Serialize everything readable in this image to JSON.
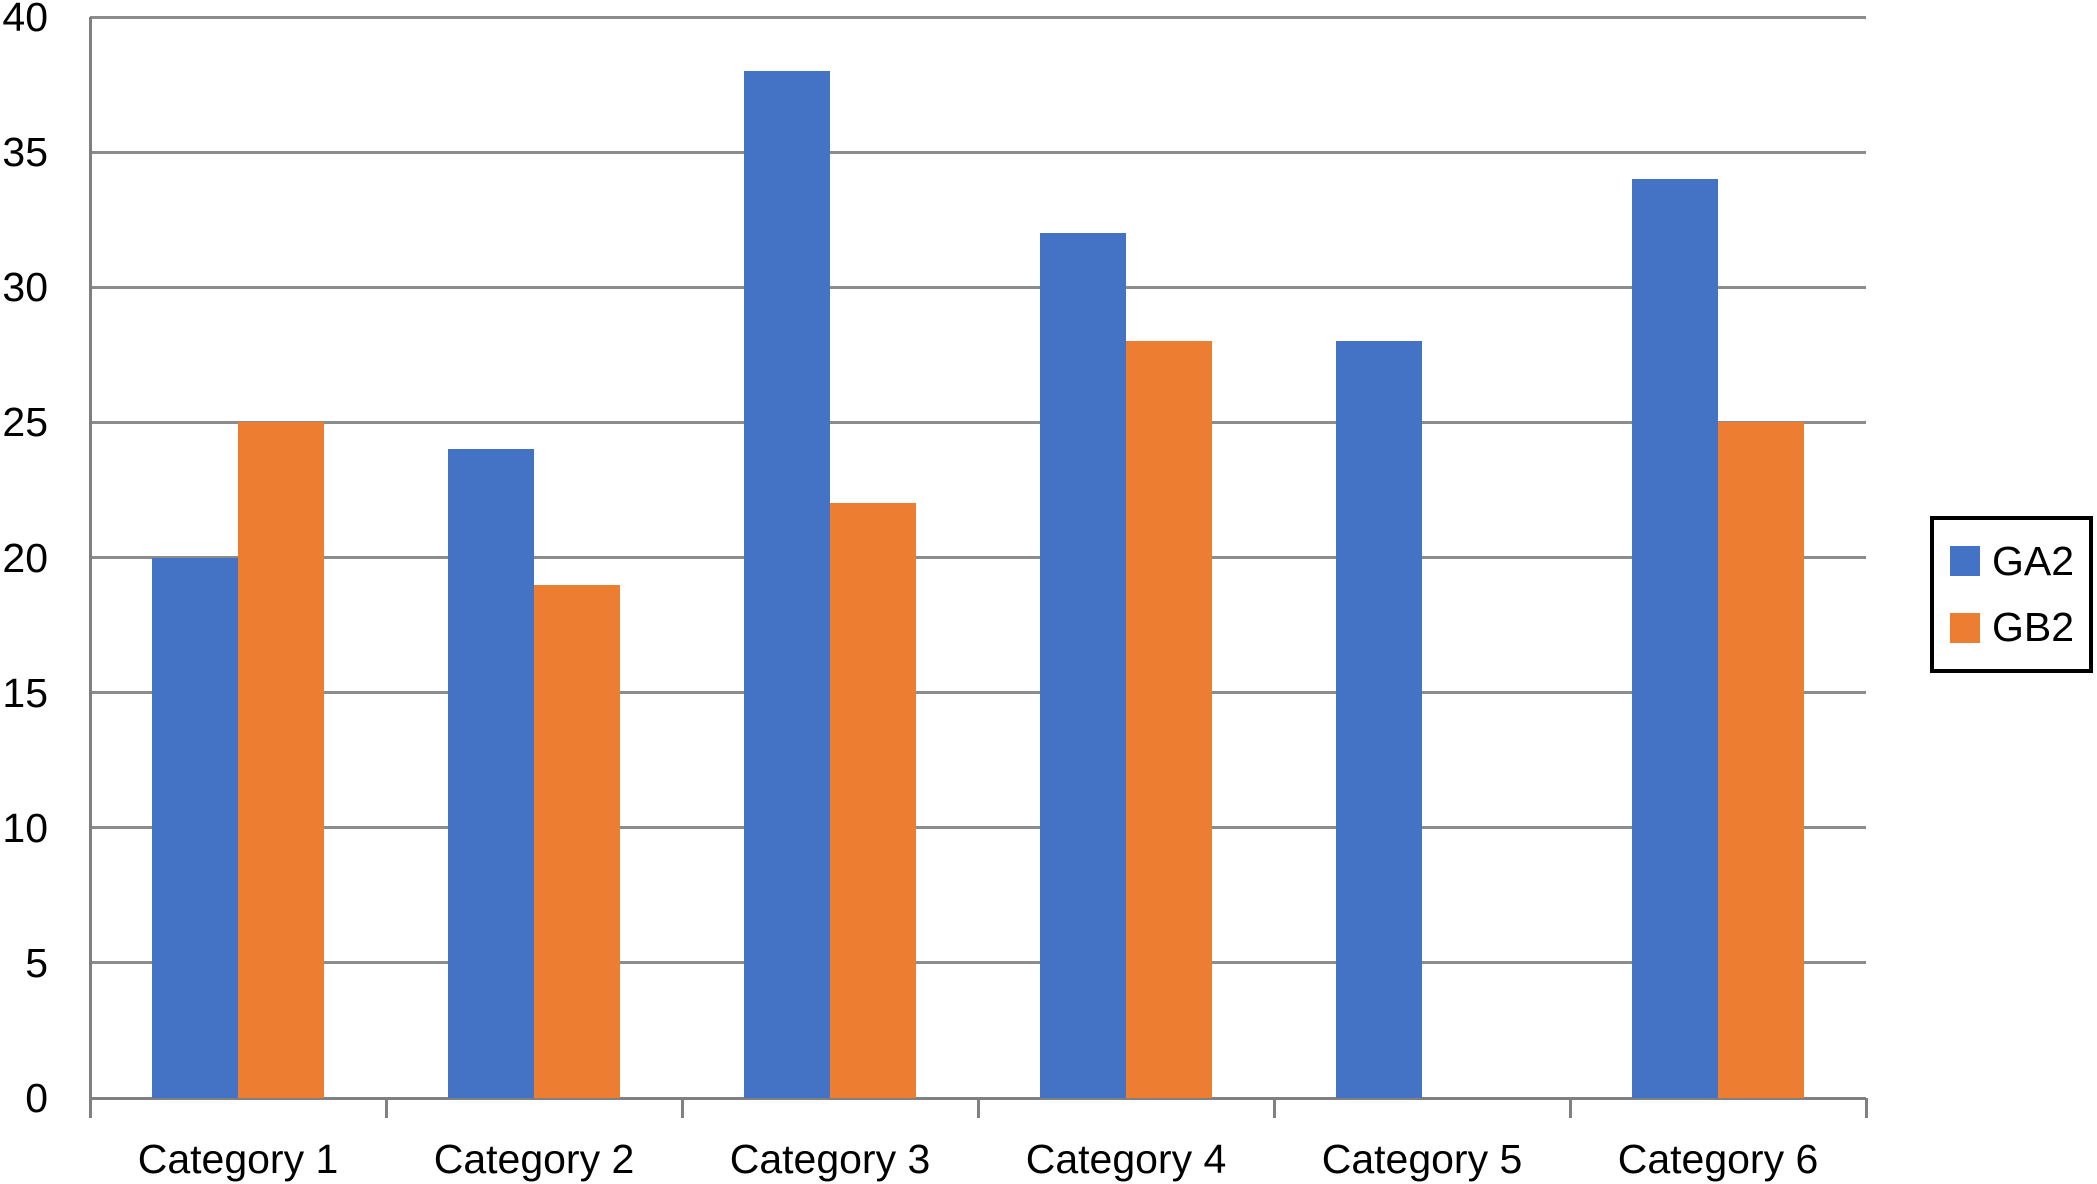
{
  "chart_data": {
    "type": "bar",
    "title": "",
    "categories": [
      "Category 1",
      "Category 2",
      "Category 3",
      "Category 4",
      "Category 5",
      "Category 6"
    ],
    "series": [
      {
        "name": "GA2",
        "color": "#4472C4",
        "values": [
          20,
          24,
          38,
          32,
          28,
          34
        ]
      },
      {
        "name": "GB2",
        "color": "#ED7D31",
        "values": [
          25,
          19,
          22,
          28,
          null,
          25
        ]
      }
    ],
    "xlabel": "",
    "ylabel": "",
    "ylim": [
      0,
      40
    ],
    "yticks": [
      0,
      5,
      10,
      15,
      20,
      25,
      30,
      35,
      40
    ],
    "grid": "horizontal",
    "gridline_color": "#8C8C8C",
    "axis_color": "#808080",
    "text_color": "#000000",
    "legend_position": "right",
    "legend_border_color": "#000000",
    "legend": [
      "GA2",
      "GB2"
    ]
  }
}
